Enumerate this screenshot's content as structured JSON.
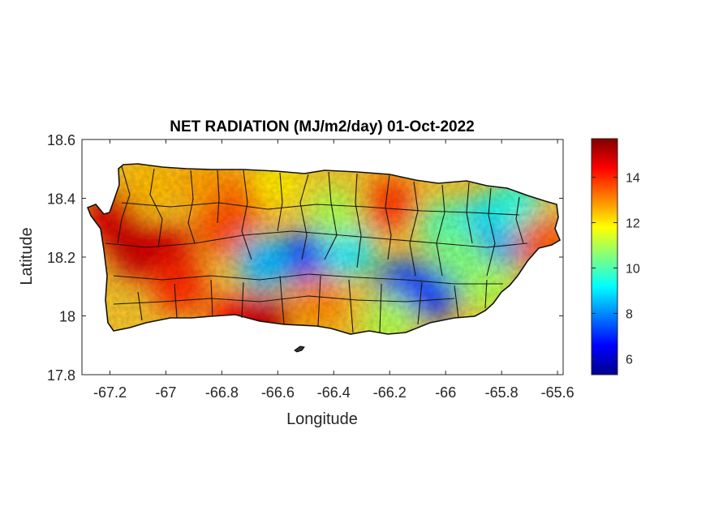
{
  "figure": {
    "title": "NET RADIATION (MJ/m2/day) 01-Oct-2022",
    "xlabel": "Longitude",
    "ylabel": "Latitude"
  },
  "chart_data": {
    "type": "heatmap",
    "title": "NET RADIATION (MJ/m2/day) 01-Oct-2022",
    "xlabel": "Longitude",
    "ylabel": "Latitude",
    "xlim": [
      -67.3,
      -65.58
    ],
    "ylim": [
      17.8,
      18.6
    ],
    "xticks": [
      -67.2,
      -67,
      -66.8,
      -66.6,
      -66.4,
      -66.2,
      -66,
      -65.8,
      -65.6
    ],
    "xtick_labels": [
      "-67.2",
      "-67",
      "-66.8",
      "-66.6",
      "-66.4",
      "-66.2",
      "-66",
      "-65.8",
      "-65.6"
    ],
    "yticks": [
      17.8,
      18,
      18.2,
      18.4,
      18.6
    ],
    "ytick_labels": [
      "17.8",
      "18",
      "18.2",
      "18.4",
      "18.6"
    ],
    "colorbar": {
      "colormap": "jet",
      "range": [
        5.3,
        15.7
      ],
      "ticks": [
        6,
        8,
        10,
        12,
        14
      ],
      "tick_labels": [
        "6",
        "8",
        "10",
        "12",
        "14"
      ]
    },
    "field_samples": [
      {
        "lon": -67.2,
        "lat": 18.33,
        "value": 14.8
      },
      {
        "lon": -67.1,
        "lat": 18.22,
        "value": 15.0
      },
      {
        "lon": -67.0,
        "lat": 18.22,
        "value": 14.8
      },
      {
        "lon": -66.95,
        "lat": 18.1,
        "value": 14.0
      },
      {
        "lon": -66.75,
        "lat": 17.98,
        "value": 14.2
      },
      {
        "lon": -66.65,
        "lat": 17.98,
        "value": 15.0
      },
      {
        "lon": -67.05,
        "lat": 18.45,
        "value": 12.5
      },
      {
        "lon": -66.85,
        "lat": 18.45,
        "value": 12.8
      },
      {
        "lon": -66.7,
        "lat": 18.4,
        "value": 13.5
      },
      {
        "lon": -66.8,
        "lat": 18.3,
        "value": 13.6
      },
      {
        "lon": -66.6,
        "lat": 18.45,
        "value": 12.0
      },
      {
        "lon": -66.5,
        "lat": 18.2,
        "value": 6.8
      },
      {
        "lon": -66.65,
        "lat": 18.18,
        "value": 8.5
      },
      {
        "lon": -66.35,
        "lat": 18.22,
        "value": 9.0
      },
      {
        "lon": -66.4,
        "lat": 18.35,
        "value": 11.0
      },
      {
        "lon": -66.45,
        "lat": 18.05,
        "value": 13.0
      },
      {
        "lon": -66.2,
        "lat": 18.38,
        "value": 13.8
      },
      {
        "lon": -66.15,
        "lat": 18.1,
        "value": 7.5
      },
      {
        "lon": -66.05,
        "lat": 18.08,
        "value": 7.0
      },
      {
        "lon": -66.2,
        "lat": 17.98,
        "value": 11.0
      },
      {
        "lon": -66.0,
        "lat": 18.3,
        "value": 10.0
      },
      {
        "lon": -65.85,
        "lat": 18.32,
        "value": 9.0
      },
      {
        "lon": -65.8,
        "lat": 18.25,
        "value": 8.2
      },
      {
        "lon": -65.75,
        "lat": 18.37,
        "value": 9.5
      },
      {
        "lon": -65.85,
        "lat": 18.1,
        "value": 11.0
      },
      {
        "lon": -65.65,
        "lat": 18.25,
        "value": 13.5
      },
      {
        "lon": -65.95,
        "lat": 18.2,
        "value": 10.5
      }
    ]
  }
}
